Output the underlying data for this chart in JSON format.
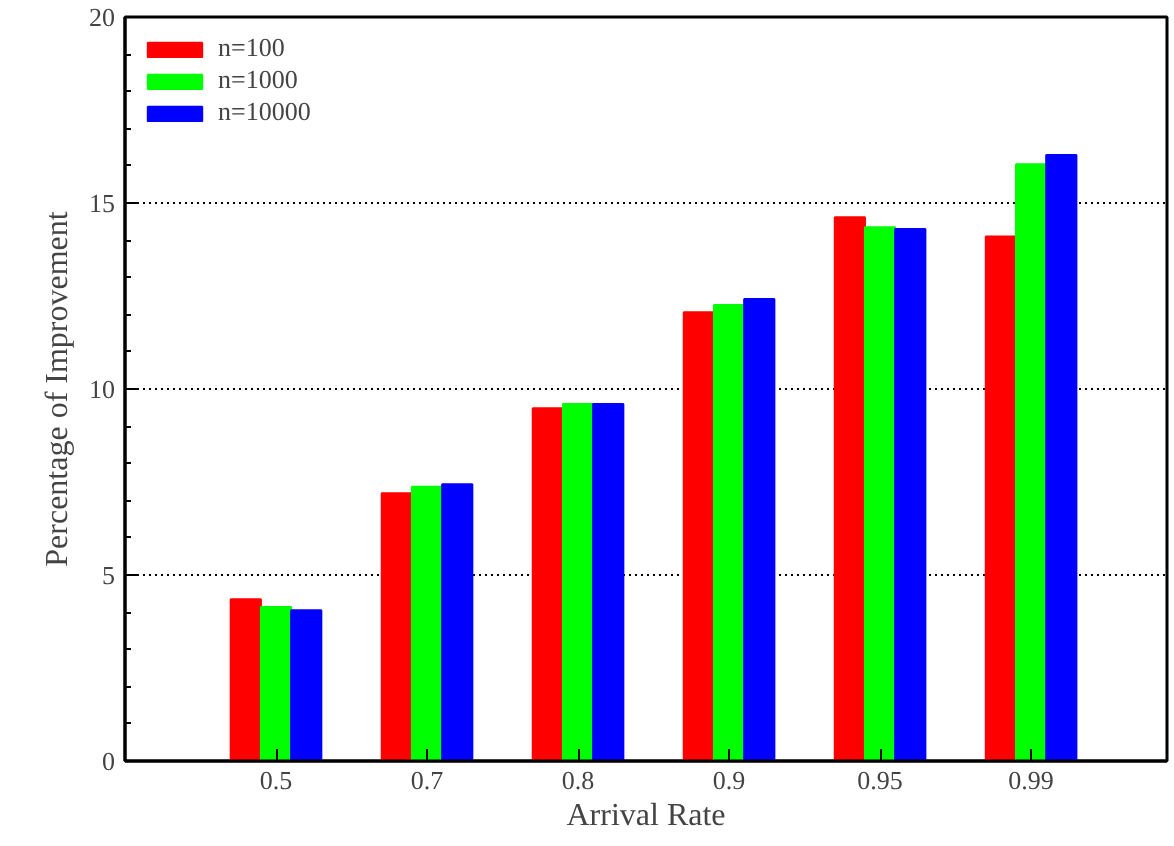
{
  "chart_data": {
    "type": "bar",
    "xlabel": "Arrival Rate",
    "ylabel": "Percentage of Improvement",
    "categories": [
      "0.5",
      "0.7",
      "0.8",
      "0.9",
      "0.95",
      "0.99"
    ],
    "series": [
      {
        "name": "n=100",
        "color": "#ff0000",
        "values": [
          4.35,
          7.2,
          9.48,
          12.06,
          14.62,
          14.1
        ]
      },
      {
        "name": "n=1000",
        "color": "#00ff00",
        "values": [
          4.14,
          7.37,
          9.6,
          12.26,
          14.35,
          16.04
        ]
      },
      {
        "name": "n=10000",
        "color": "#0000ff",
        "values": [
          4.05,
          7.44,
          9.6,
          12.42,
          14.3,
          16.29
        ]
      }
    ],
    "ylim": [
      0,
      20
    ],
    "yticks": [
      0,
      5,
      10,
      15,
      20
    ],
    "grid": "y",
    "legend": "top left"
  }
}
